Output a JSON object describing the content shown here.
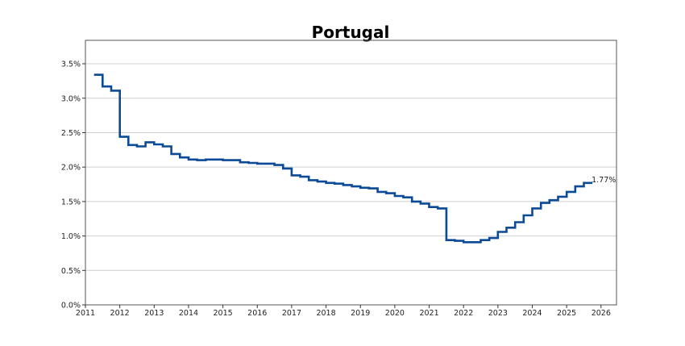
{
  "chart_data": {
    "type": "line",
    "step": "post",
    "title": "Portugal",
    "xlabel": "",
    "ylabel": "",
    "xlim": [
      2011,
      2026.45
    ],
    "ylim": [
      0,
      3.84
    ],
    "grid": "horizontal",
    "x_ticks": [
      2011,
      2012,
      2013,
      2014,
      2015,
      2016,
      2017,
      2018,
      2019,
      2020,
      2021,
      2022,
      2023,
      2024,
      2025,
      2026
    ],
    "x_tick_labels": [
      "2011",
      "2012",
      "2013",
      "2014",
      "2015",
      "2016",
      "2017",
      "2018",
      "2019",
      "2020",
      "2021",
      "2022",
      "2023",
      "2024",
      "2025",
      "2026"
    ],
    "y_ticks": [
      0,
      0.5,
      1.0,
      1.5,
      2.0,
      2.5,
      3.0,
      3.5
    ],
    "y_tick_labels": [
      "0.0%",
      "0.5%",
      "1.0%",
      "1.5%",
      "2.0%",
      "2.5%",
      "3.0%",
      "3.5%"
    ],
    "end_x": 2025.75,
    "end_label": "1.77%",
    "line_color": "#0b4a96",
    "series": [
      {
        "name": "Portugal",
        "x": [
          2011.25,
          2011.5,
          2011.75,
          2012.0,
          2012.25,
          2012.5,
          2012.75,
          2013.0,
          2013.25,
          2013.5,
          2013.75,
          2014.0,
          2014.25,
          2014.5,
          2014.75,
          2015.0,
          2015.25,
          2015.5,
          2015.75,
          2016.0,
          2016.25,
          2016.5,
          2016.75,
          2017.0,
          2017.25,
          2017.5,
          2017.75,
          2018.0,
          2018.25,
          2018.5,
          2018.75,
          2019.0,
          2019.25,
          2019.5,
          2019.75,
          2020.0,
          2020.25,
          2020.5,
          2020.75,
          2021.0,
          2021.25,
          2021.5,
          2021.75,
          2022.0,
          2022.25,
          2022.5,
          2022.75,
          2023.0,
          2023.25,
          2023.5,
          2023.75,
          2024.0,
          2024.25,
          2024.5,
          2024.75,
          2025.0,
          2025.25,
          2025.5
        ],
        "values": [
          3.34,
          3.17,
          3.11,
          2.44,
          2.32,
          2.3,
          2.36,
          2.33,
          2.3,
          2.19,
          2.14,
          2.11,
          2.1,
          2.11,
          2.11,
          2.1,
          2.1,
          2.07,
          2.06,
          2.05,
          2.05,
          2.03,
          1.98,
          1.88,
          1.86,
          1.81,
          1.79,
          1.77,
          1.76,
          1.74,
          1.72,
          1.7,
          1.69,
          1.64,
          1.62,
          1.58,
          1.56,
          1.5,
          1.47,
          1.42,
          1.4,
          0.94,
          0.93,
          0.91,
          0.91,
          0.94,
          0.97,
          1.06,
          1.12,
          1.2,
          1.3,
          1.4,
          1.48,
          1.52,
          1.57,
          1.64,
          1.72,
          1.77
        ]
      }
    ]
  }
}
